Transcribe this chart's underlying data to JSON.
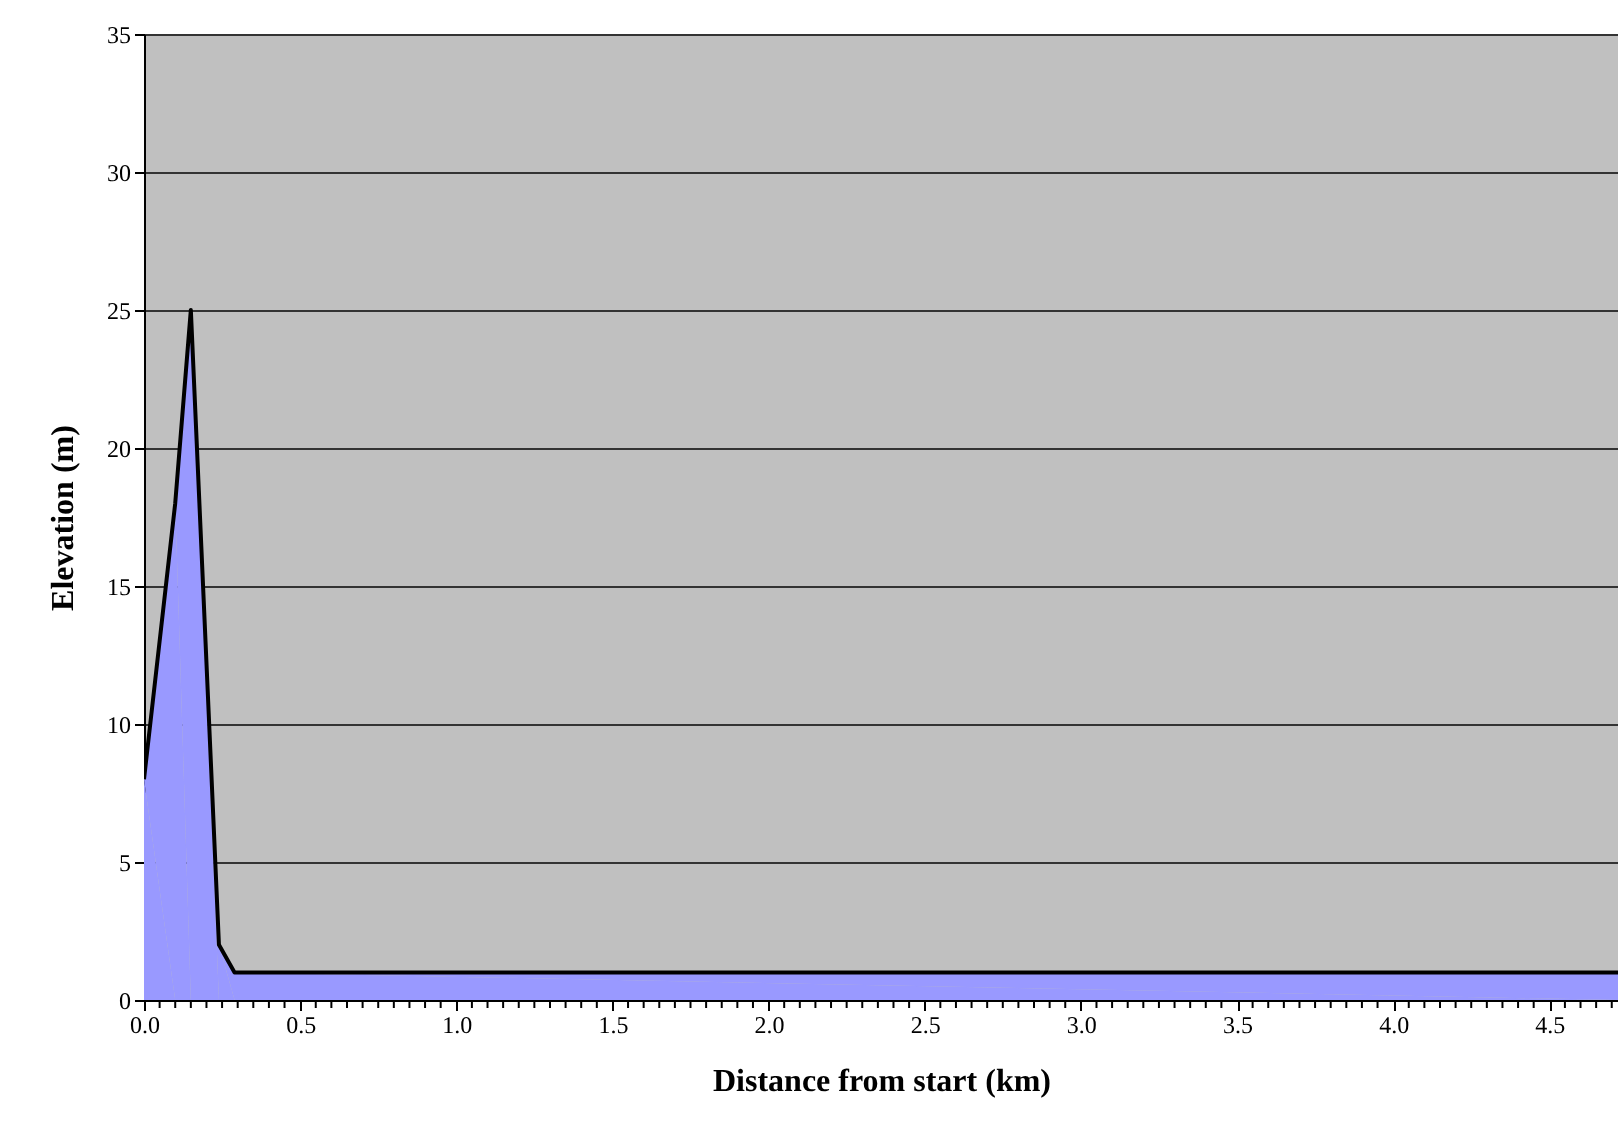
{
  "chart_data": {
    "type": "area",
    "xlabel": "Distance from start (km)",
    "ylabel": "Elevation (m)",
    "series": [
      {
        "x": [
          0,
          0.1,
          0.15,
          0.24,
          0.29,
          4.72
        ],
        "values": [
          8,
          18,
          25,
          2,
          1,
          1
        ],
        "color": "#9999ff"
      }
    ],
    "xlim": [
      0,
      4.72
    ],
    "ylim": [
      0,
      35
    ],
    "xticks": [
      {
        "value": 0,
        "label": "0.0"
      },
      {
        "value": 0.05,
        "label": null
      },
      {
        "value": 0.1,
        "label": null
      },
      {
        "value": 0.15,
        "label": null
      },
      {
        "value": 0.2,
        "label": null
      },
      {
        "value": 0.25,
        "label": null
      },
      {
        "value": 0.3,
        "label": null
      },
      {
        "value": 0.35,
        "label": null
      },
      {
        "value": 0.4,
        "label": null
      },
      {
        "value": 0.45,
        "label": null
      },
      {
        "value": 0.5,
        "label": "0.5"
      },
      {
        "value": 0.55,
        "label": null
      },
      {
        "value": 0.6,
        "label": null
      },
      {
        "value": 0.65,
        "label": null
      },
      {
        "value": 0.7,
        "label": null
      },
      {
        "value": 0.75,
        "label": null
      },
      {
        "value": 0.8,
        "label": null
      },
      {
        "value": 0.85,
        "label": null
      },
      {
        "value": 0.9,
        "label": null
      },
      {
        "value": 0.95,
        "label": null
      },
      {
        "value": 1,
        "label": "1.0"
      },
      {
        "value": 1.05,
        "label": null
      },
      {
        "value": 1.1,
        "label": null
      },
      {
        "value": 1.15,
        "label": null
      },
      {
        "value": 1.2,
        "label": null
      },
      {
        "value": 1.25,
        "label": null
      },
      {
        "value": 1.3,
        "label": null
      },
      {
        "value": 1.35,
        "label": null
      },
      {
        "value": 1.4,
        "label": null
      },
      {
        "value": 1.45,
        "label": null
      },
      {
        "value": 1.5,
        "label": "1.5"
      },
      {
        "value": 1.55,
        "label": null
      },
      {
        "value": 1.6,
        "label": null
      },
      {
        "value": 1.65,
        "label": null
      },
      {
        "value": 1.7,
        "label": null
      },
      {
        "value": 1.75,
        "label": null
      },
      {
        "value": 1.8,
        "label": null
      },
      {
        "value": 1.85,
        "label": null
      },
      {
        "value": 1.9,
        "label": null
      },
      {
        "value": 1.95,
        "label": null
      },
      {
        "value": 2,
        "label": "2.0"
      },
      {
        "value": 2.05,
        "label": null
      },
      {
        "value": 2.1,
        "label": null
      },
      {
        "value": 2.15,
        "label": null
      },
      {
        "value": 2.2,
        "label": null
      },
      {
        "value": 2.25,
        "label": null
      },
      {
        "value": 2.3,
        "label": null
      },
      {
        "value": 2.35,
        "label": null
      },
      {
        "value": 2.4,
        "label": null
      },
      {
        "value": 2.45,
        "label": null
      },
      {
        "value": 2.5,
        "label": "2.5"
      },
      {
        "value": 2.55,
        "label": null
      },
      {
        "value": 2.6,
        "label": null
      },
      {
        "value": 2.65,
        "label": null
      },
      {
        "value": 2.7,
        "label": null
      },
      {
        "value": 2.75,
        "label": null
      },
      {
        "value": 2.8,
        "label": null
      },
      {
        "value": 2.85,
        "label": null
      },
      {
        "value": 2.9,
        "label": null
      },
      {
        "value": 2.95,
        "label": null
      },
      {
        "value": 3,
        "label": "3.0"
      },
      {
        "value": 3.05,
        "label": null
      },
      {
        "value": 3.1,
        "label": null
      },
      {
        "value": 3.15,
        "label": null
      },
      {
        "value": 3.2,
        "label": null
      },
      {
        "value": 3.25,
        "label": null
      },
      {
        "value": 3.3,
        "label": null
      },
      {
        "value": 3.35,
        "label": null
      },
      {
        "value": 3.4,
        "label": null
      },
      {
        "value": 3.45,
        "label": null
      },
      {
        "value": 3.5,
        "label": "3.5"
      },
      {
        "value": 3.55,
        "label": null
      },
      {
        "value": 3.6,
        "label": null
      },
      {
        "value": 3.65,
        "label": null
      },
      {
        "value": 3.7,
        "label": null
      },
      {
        "value": 3.75,
        "label": null
      },
      {
        "value": 3.8,
        "label": null
      },
      {
        "value": 3.85,
        "label": null
      },
      {
        "value": 3.9,
        "label": null
      },
      {
        "value": 3.95,
        "label": null
      },
      {
        "value": 4,
        "label": "4.0"
      },
      {
        "value": 4.05,
        "label": null
      },
      {
        "value": 4.1,
        "label": null
      },
      {
        "value": 4.15,
        "label": null
      },
      {
        "value": 4.2,
        "label": null
      },
      {
        "value": 4.25,
        "label": null
      },
      {
        "value": 4.3,
        "label": null
      },
      {
        "value": 4.35,
        "label": null
      },
      {
        "value": 4.4,
        "label": null
      },
      {
        "value": 4.45,
        "label": null
      },
      {
        "value": 4.5,
        "label": "4.5"
      },
      {
        "value": 4.55,
        "label": null
      },
      {
        "value": 4.6,
        "label": null
      },
      {
        "value": 4.65,
        "label": null
      },
      {
        "value": 4.7,
        "label": null
      }
    ],
    "yticks": [
      0,
      5,
      10,
      15,
      20,
      25,
      30,
      35
    ],
    "grid": "y"
  }
}
